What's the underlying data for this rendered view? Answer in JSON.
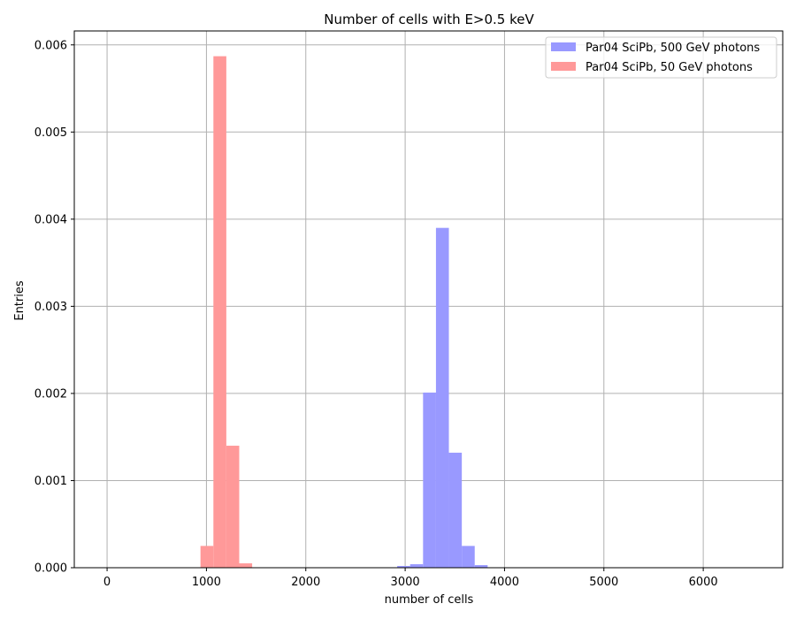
{
  "chart_data": {
    "type": "bar",
    "subtype": "histogram",
    "title": "Number of cells with E>0.5 keV",
    "xlabel": "number of cells",
    "ylabel": "Entries",
    "xlim": [
      -330,
      6800
    ],
    "ylim": [
      0,
      0.00616
    ],
    "xticks": [
      0,
      1000,
      2000,
      3000,
      4000,
      5000,
      6000
    ],
    "yticks": [
      0.0,
      0.001,
      0.002,
      0.003,
      0.004,
      0.005,
      0.006
    ],
    "xtick_labels": [
      "0",
      "1000",
      "2000",
      "3000",
      "4000",
      "5000",
      "6000"
    ],
    "ytick_labels": [
      "0.000",
      "0.001",
      "0.002",
      "0.003",
      "0.004",
      "0.005",
      "0.006"
    ],
    "bin_width": 130,
    "grid": true,
    "legend_position": "top-right",
    "series": [
      {
        "name": "Par04 SciPb, 500 GeV photons",
        "color": "#9999ff",
        "bins": [
          {
            "x0": 2920,
            "x1": 3050,
            "value": 2e-05
          },
          {
            "x0": 3050,
            "x1": 3180,
            "value": 4e-05
          },
          {
            "x0": 3180,
            "x1": 3310,
            "value": 0.00201
          },
          {
            "x0": 3310,
            "x1": 3440,
            "value": 0.0039
          },
          {
            "x0": 3440,
            "x1": 3570,
            "value": 0.00132
          },
          {
            "x0": 3570,
            "x1": 3700,
            "value": 0.00025
          },
          {
            "x0": 3700,
            "x1": 3830,
            "value": 3e-05
          }
        ]
      },
      {
        "name": "Par04 SciPb, 50 GeV photons",
        "color": "#ff9999",
        "bins": [
          {
            "x0": 940,
            "x1": 1070,
            "value": 0.00025
          },
          {
            "x0": 1070,
            "x1": 1200,
            "value": 0.00587
          },
          {
            "x0": 1200,
            "x1": 1330,
            "value": 0.0014
          },
          {
            "x0": 1330,
            "x1": 1460,
            "value": 5e-05
          }
        ]
      }
    ]
  }
}
